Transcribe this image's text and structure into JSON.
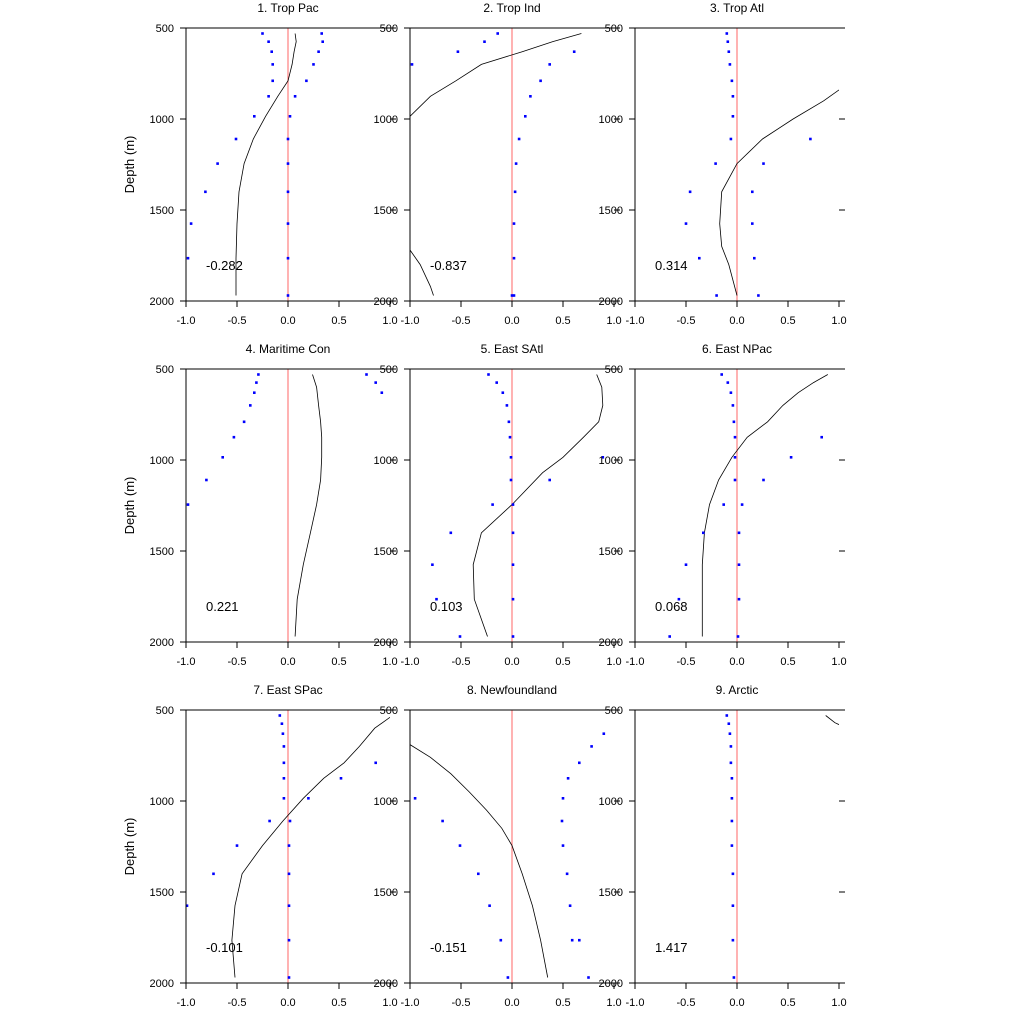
{
  "chart_data": [
    {
      "type": "scatter",
      "title": "1. Trop Pac",
      "ylabel": "Depth (m)",
      "xlim": [
        -1.0,
        1.0
      ],
      "ylim": [
        2000,
        500
      ],
      "x_ticks": [
        "-1.0",
        "-0.5",
        "0.0",
        "0.5",
        "1.0"
      ],
      "y_ticks": [
        "500",
        "1000",
        "1500",
        "2000"
      ],
      "annotation": "-0.282",
      "points_left": {
        "x": [
          -0.25,
          -0.19,
          -0.16,
          -0.15,
          -0.15,
          -0.19,
          -0.33,
          -0.51,
          -0.69,
          -0.81,
          -0.95,
          -0.98
        ],
        "y": [
          530,
          575,
          630,
          700,
          790,
          875,
          985,
          1110,
          1245,
          1400,
          1575,
          1765
        ]
      },
      "points_right": {
        "x": [
          0.33,
          0.34,
          0.3,
          0.25,
          0.18,
          0.07,
          0.02,
          0.0,
          0.0,
          0.0,
          0.0,
          0.0,
          0.0
        ],
        "y": [
          530,
          575,
          630,
          700,
          790,
          875,
          985,
          1110,
          1245,
          1400,
          1575,
          1765,
          1970
        ]
      },
      "curve": {
        "x": [
          0.07,
          0.08,
          0.06,
          0.04,
          0.0,
          -0.1,
          -0.22,
          -0.34,
          -0.43,
          -0.48,
          -0.5,
          -0.51,
          -0.51
        ],
        "y": [
          530,
          575,
          630,
          700,
          790,
          875,
          985,
          1110,
          1245,
          1400,
          1575,
          1765,
          1970
        ]
      }
    },
    {
      "type": "scatter",
      "title": "2. Trop Ind",
      "ylabel": "",
      "xlim": [
        -1.0,
        1.0
      ],
      "ylim": [
        2000,
        500
      ],
      "x_ticks": [
        "-1.0",
        "-0.5",
        "0.0",
        "0.5",
        "1.0"
      ],
      "y_ticks": [
        "500",
        "1000",
        "1500",
        "2000"
      ],
      "annotation": "-0.837",
      "points_left": {
        "x": [
          -0.14,
          -0.27,
          -0.53,
          -0.98
        ],
        "y": [
          530,
          575,
          630,
          700
        ]
      },
      "points_right": {
        "x": [
          0.61,
          0.37,
          0.28,
          0.18,
          0.13,
          0.07,
          0.04,
          0.03,
          0.02,
          0.02,
          0.02,
          0.0
        ],
        "y": [
          630,
          700,
          790,
          875,
          985,
          1110,
          1245,
          1400,
          1575,
          1765,
          1970,
          1970
        ]
      },
      "curve": {
        "x": [
          0.68,
          0.4,
          0.1,
          -0.3,
          -0.55,
          -0.8,
          -1.0
        ],
        "y": [
          530,
          575,
          630,
          700,
          790,
          875,
          985
        ]
      },
      "curve_tail": {
        "x": [
          -1.0,
          -0.9,
          -0.8,
          -0.77
        ],
        "y": [
          1720,
          1800,
          1920,
          1970
        ]
      }
    },
    {
      "type": "scatter",
      "title": "3. Trop Atl",
      "ylabel": "",
      "xlim": [
        -1.0,
        1.0
      ],
      "ylim": [
        2000,
        500
      ],
      "x_ticks": [
        "-1.0",
        "-0.5",
        "0.0",
        "0.5",
        "1.0"
      ],
      "y_ticks": [
        "500",
        "1000",
        "1500",
        "2000"
      ],
      "annotation": "0.314",
      "points_left": {
        "x": [
          -0.1,
          -0.09,
          -0.08,
          -0.07,
          -0.05,
          -0.04,
          -0.04,
          -0.06,
          -0.21,
          -0.46,
          -0.5,
          -0.37,
          -0.2
        ],
        "y": [
          530,
          575,
          630,
          700,
          790,
          875,
          985,
          1110,
          1245,
          1400,
          1575,
          1765,
          1970
        ]
      },
      "points_right": {
        "x": [
          0.72,
          0.26,
          0.15,
          0.15,
          0.17,
          0.21
        ],
        "y": [
          1110,
          1245,
          1400,
          1575,
          1765,
          1970
        ]
      },
      "curve": {
        "x": [
          1.0,
          0.85,
          0.55,
          0.25,
          0.0,
          -0.15,
          -0.17,
          -0.15,
          -0.08,
          0.0
        ],
        "y": [
          840,
          900,
          1000,
          1110,
          1245,
          1400,
          1575,
          1700,
          1800,
          1970
        ]
      }
    },
    {
      "type": "scatter",
      "title": "4. Maritime Con",
      "ylabel": "Depth (m)",
      "xlim": [
        -1.0,
        1.0
      ],
      "ylim": [
        2000,
        500
      ],
      "x_ticks": [
        "-1.0",
        "-0.5",
        "0.0",
        "0.5",
        "1.0"
      ],
      "y_ticks": [
        "500",
        "1000",
        "1500",
        "2000"
      ],
      "annotation": "0.221",
      "points_left": {
        "x": [
          -0.29,
          -0.31,
          -0.33,
          -0.37,
          -0.43,
          -0.53,
          -0.64,
          -0.8,
          -0.98
        ],
        "y": [
          530,
          575,
          630,
          700,
          790,
          875,
          985,
          1110,
          1245
        ]
      },
      "points_right": {
        "x": [
          0.77,
          0.86,
          0.92
        ],
        "y": [
          530,
          575,
          630
        ]
      },
      "curve": {
        "x": [
          0.24,
          0.28,
          0.3,
          0.32,
          0.33,
          0.33,
          0.32,
          0.28,
          0.22,
          0.15,
          0.09,
          0.07
        ],
        "y": [
          530,
          600,
          700,
          790,
          875,
          985,
          1110,
          1245,
          1400,
          1575,
          1765,
          1970
        ]
      }
    },
    {
      "type": "scatter",
      "title": "5. East SAtl",
      "ylabel": "",
      "xlim": [
        -1.0,
        1.0
      ],
      "ylim": [
        2000,
        500
      ],
      "x_ticks": [
        "-1.0",
        "-0.5",
        "0.0",
        "0.5",
        "1.0"
      ],
      "y_ticks": [
        "500",
        "1000",
        "1500",
        "2000"
      ],
      "annotation": "0.103",
      "points_left": {
        "x": [
          -0.23,
          -0.15,
          -0.09,
          -0.05,
          -0.03,
          -0.02,
          -0.01,
          -0.01,
          -0.19,
          -0.6,
          -0.78,
          -0.74,
          -0.51
        ],
        "y": [
          530,
          575,
          630,
          700,
          790,
          875,
          985,
          1110,
          1245,
          1400,
          1575,
          1765,
          1970
        ]
      },
      "points_right": {
        "x": [
          0.89,
          0.37,
          0.01,
          0.01,
          0.01,
          0.01,
          0.01
        ],
        "y": [
          985,
          1110,
          1245,
          1400,
          1575,
          1765,
          1970
        ]
      },
      "curve": {
        "x": [
          0.83,
          0.88,
          0.89,
          0.85,
          0.7,
          0.5,
          0.3,
          0.0,
          -0.3,
          -0.38,
          -0.37,
          -0.24
        ],
        "y": [
          530,
          600,
          700,
          790,
          875,
          985,
          1070,
          1245,
          1400,
          1575,
          1765,
          1970
        ]
      }
    },
    {
      "type": "scatter",
      "title": "6. East NPac",
      "ylabel": "",
      "xlim": [
        -1.0,
        1.0
      ],
      "ylim": [
        2000,
        500
      ],
      "x_ticks": [
        "-1.0",
        "-0.5",
        "0.0",
        "0.5",
        "1.0"
      ],
      "y_ticks": [
        "500",
        "1000",
        "1500",
        "2000"
      ],
      "annotation": "0.068",
      "points_left": {
        "x": [
          -0.15,
          -0.09,
          -0.06,
          -0.04,
          -0.03,
          -0.02,
          -0.02,
          -0.02,
          -0.13,
          -0.33,
          -0.5,
          -0.57,
          -0.66
        ],
        "y": [
          530,
          575,
          630,
          700,
          790,
          875,
          985,
          1110,
          1245,
          1400,
          1575,
          1765,
          1970
        ]
      },
      "points_right": {
        "x": [
          0.83,
          0.53,
          0.26,
          0.05,
          0.02,
          0.02,
          0.02,
          0.01
        ],
        "y": [
          875,
          985,
          1110,
          1245,
          1400,
          1575,
          1765,
          1970
        ]
      },
      "curve": {
        "x": [
          0.89,
          0.75,
          0.6,
          0.45,
          0.3,
          0.1,
          -0.05,
          -0.18,
          -0.27,
          -0.32,
          -0.34,
          -0.34
        ],
        "y": [
          530,
          575,
          630,
          700,
          790,
          875,
          985,
          1110,
          1245,
          1400,
          1575,
          1970
        ]
      }
    },
    {
      "type": "scatter",
      "title": "7. East SPac",
      "ylabel": "Depth (m)",
      "xlim": [
        -1.0,
        1.0
      ],
      "ylim": [
        2000,
        500
      ],
      "x_ticks": [
        "-1.0",
        "-0.5",
        "0.0",
        "0.5",
        "1.0"
      ],
      "y_ticks": [
        "500",
        "1000",
        "1500",
        "2000"
      ],
      "annotation": "-0.101",
      "points_left": {
        "x": [
          -0.08,
          -0.06,
          -0.05,
          -0.04,
          -0.04,
          -0.04,
          -0.04,
          -0.18,
          -0.5,
          -0.73,
          -0.99
        ],
        "y": [
          530,
          575,
          630,
          700,
          790,
          875,
          985,
          1110,
          1245,
          1400,
          1575
        ]
      },
      "points_right": {
        "x": [
          0.86,
          0.52,
          0.2,
          0.02,
          0.01,
          0.01,
          0.01,
          0.01,
          0.01
        ],
        "y": [
          790,
          875,
          985,
          1110,
          1245,
          1400,
          1575,
          1765,
          1970
        ]
      },
      "curve": {
        "x": [
          1.0,
          0.85,
          0.7,
          0.55,
          0.35,
          0.15,
          -0.05,
          -0.25,
          -0.45,
          -0.52,
          -0.55,
          -0.52
        ],
        "y": [
          540,
          600,
          700,
          790,
          875,
          985,
          1110,
          1245,
          1400,
          1575,
          1765,
          1970
        ]
      }
    },
    {
      "type": "scatter",
      "title": "8. Newfoundland",
      "ylabel": "",
      "xlim": [
        -1.0,
        1.0
      ],
      "ylim": [
        2000,
        500
      ],
      "x_ticks": [
        "-1.0",
        "-0.5",
        "0.0",
        "0.5",
        "1.0"
      ],
      "y_ticks": [
        "500",
        "1000",
        "1500",
        "2000"
      ],
      "annotation": "-0.151",
      "points_left": {
        "x": [
          -0.95,
          -0.68,
          -0.51,
          -0.33,
          -0.22,
          -0.11,
          -0.04
        ],
        "y": [
          985,
          1110,
          1245,
          1400,
          1575,
          1765,
          1970
        ]
      },
      "points_right": {
        "x": [
          0.9,
          0.78,
          0.66,
          0.55,
          0.5,
          0.49,
          0.5,
          0.54,
          0.57,
          0.59,
          0.66,
          0.75
        ],
        "y": [
          630,
          700,
          790,
          875,
          985,
          1110,
          1245,
          1400,
          1575,
          1765,
          1765,
          1970
        ]
      },
      "curve": {
        "x": [
          -1.0,
          -0.8,
          -0.6,
          -0.42,
          -0.25,
          -0.1,
          0.0,
          0.1,
          0.2,
          0.28,
          0.35
        ],
        "y": [
          690,
          760,
          850,
          950,
          1050,
          1150,
          1245,
          1400,
          1575,
          1765,
          1970
        ]
      }
    },
    {
      "type": "scatter",
      "title": "9. Arctic",
      "ylabel": "",
      "xlim": [
        -1.0,
        1.0
      ],
      "ylim": [
        2000,
        500
      ],
      "x_ticks": [
        "-1.0",
        "-0.5",
        "0.0",
        "0.5",
        "1.0"
      ],
      "y_ticks": [
        "500",
        "1000",
        "1500",
        "2000"
      ],
      "annotation": "1.417",
      "points_left": {
        "x": [
          -0.1,
          -0.08,
          -0.07,
          -0.06,
          -0.06,
          -0.05,
          -0.05,
          -0.05,
          -0.05,
          -0.04,
          -0.04,
          -0.04,
          -0.03
        ],
        "y": [
          530,
          575,
          630,
          700,
          790,
          875,
          985,
          1110,
          1245,
          1400,
          1575,
          1765,
          1970
        ]
      },
      "points_right": {
        "x": [],
        "y": []
      },
      "curve": {
        "x": [
          0.87,
          0.96,
          1.0
        ],
        "y": [
          530,
          570,
          580
        ]
      }
    }
  ]
}
